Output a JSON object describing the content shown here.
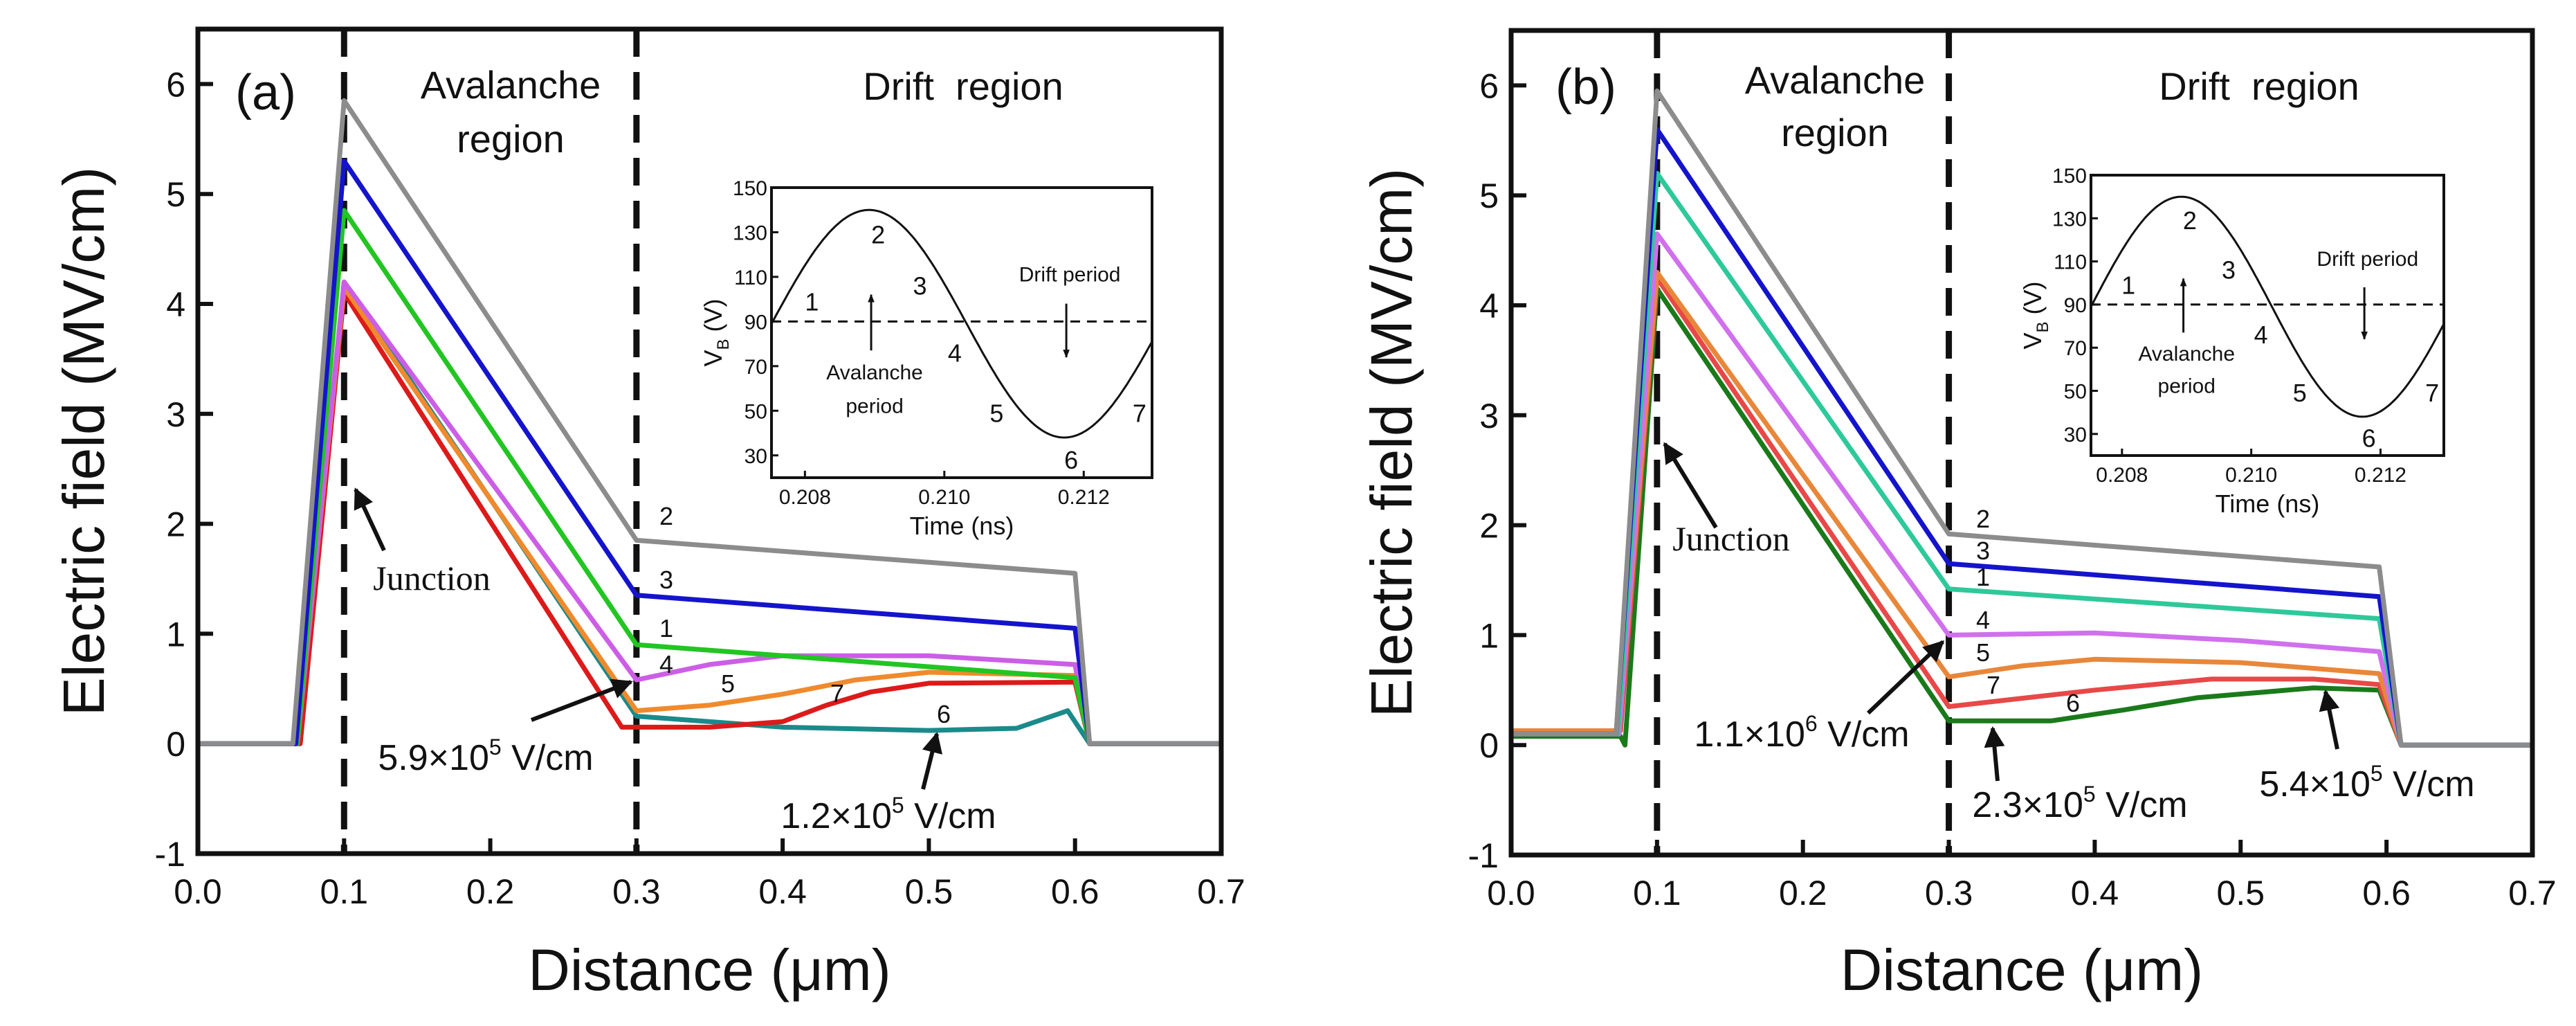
{
  "chart_data": [
    {
      "type": "line",
      "panel_label": "(a)",
      "xlabel": "Distance (μm)",
      "ylabel": "Electric field (MV/cm)",
      "xlim": [
        0.0,
        0.7
      ],
      "ylim": [
        -1,
        6.5
      ],
      "xticks": [
        "0.0",
        "0.1",
        "0.2",
        "0.3",
        "0.4",
        "0.5",
        "0.6",
        "0.7"
      ],
      "yticks": [
        "-1",
        "0",
        "1",
        "2",
        "3",
        "4",
        "5",
        "6"
      ],
      "region_labels": {
        "avalanche_1": "Avalanche",
        "avalanche_2": "region",
        "drift": "Drift  region"
      },
      "dashed_lines_x": [
        0.1,
        0.3
      ],
      "annotations": {
        "junction": "Junction",
        "a1": "5.9×10",
        "a1_exp": "5",
        "a1_unit": " V/cm",
        "a2": "1.2×10",
        "a2_exp": "5",
        "a2_unit": " V/cm"
      },
      "series": [
        {
          "name": "2",
          "color": "#8c8c8c",
          "x": [
            0,
            0.065,
            0.1,
            0.3,
            0.6,
            0.61,
            0.7
          ],
          "y": [
            0,
            0,
            5.85,
            1.85,
            1.55,
            0,
            0
          ]
        },
        {
          "name": "3",
          "color": "#1414cc",
          "x": [
            0,
            0.067,
            0.1,
            0.3,
            0.6,
            0.61,
            0.7
          ],
          "y": [
            0,
            0,
            5.3,
            1.35,
            1.05,
            0,
            0
          ]
        },
        {
          "name": "1",
          "color": "#22c522",
          "x": [
            0,
            0.068,
            0.1,
            0.3,
            0.6,
            0.61,
            0.7
          ],
          "y": [
            0,
            0,
            4.85,
            0.9,
            0.6,
            0,
            0
          ]
        },
        {
          "name": "4",
          "color": "#cc5ee6",
          "x": [
            0,
            0.068,
            0.1,
            0.3,
            0.35,
            0.4,
            0.5,
            0.6,
            0.61,
            0.7
          ],
          "y": [
            0,
            0,
            4.2,
            0.58,
            0.72,
            0.8,
            0.8,
            0.72,
            0,
            0
          ]
        },
        {
          "name": "5",
          "color": "#f08a2c",
          "x": [
            0,
            0.068,
            0.1,
            0.3,
            0.35,
            0.4,
            0.45,
            0.5,
            0.6,
            0.61,
            0.7
          ],
          "y": [
            0,
            0,
            4.15,
            0.3,
            0.35,
            0.45,
            0.58,
            0.65,
            0.62,
            0,
            0
          ]
        },
        {
          "name": "7",
          "color": "#dd1a1a",
          "x": [
            0,
            0.07,
            0.1,
            0.29,
            0.35,
            0.4,
            0.43,
            0.46,
            0.5,
            0.6,
            0.61,
            0.7
          ],
          "y": [
            0,
            0,
            4.1,
            0.15,
            0.15,
            0.2,
            0.35,
            0.47,
            0.55,
            0.56,
            0,
            0
          ]
        },
        {
          "name": "6",
          "color": "#1b8a8a",
          "x": [
            0,
            0.07,
            0.1,
            0.3,
            0.35,
            0.4,
            0.5,
            0.56,
            0.595,
            0.61,
            0.7
          ],
          "y": [
            0,
            0,
            4.2,
            0.25,
            0.2,
            0.15,
            0.12,
            0.14,
            0.3,
            0,
            0
          ]
        }
      ],
      "inset": {
        "xlabel": "Time (ns)",
        "ylabel": "V",
        "ylabel_sub": "B",
        "ylabel_unit": " (V)",
        "xlim": [
          0.20752,
          0.21298
        ],
        "ylim": [
          20,
          150
        ],
        "xticks": [
          "0.208",
          "0.210",
          "0.212"
        ],
        "yticks": [
          "30",
          "50",
          "70",
          "90",
          "110",
          "130",
          "150"
        ],
        "offset": 89,
        "amplitude": 51,
        "period_ns": 0.0056,
        "start_ns": 0.20752,
        "dc_level": 90,
        "point_labels": [
          "1",
          "2",
          "3",
          "4",
          "5",
          "6",
          "7"
        ],
        "avalanche_1": "Avalanche",
        "avalanche_2": "period",
        "drift": "Drift period"
      }
    },
    {
      "type": "line",
      "panel_label": "(b)",
      "xlabel": "Distance (μm)",
      "ylabel": "Electric field (MV/cm)",
      "xlim": [
        0.0,
        0.7
      ],
      "ylim": [
        -1,
        6.5
      ],
      "xticks": [
        "0.0",
        "0.1",
        "0.2",
        "0.3",
        "0.4",
        "0.5",
        "0.6",
        "0.7"
      ],
      "yticks": [
        "-1",
        "0",
        "1",
        "2",
        "3",
        "4",
        "5",
        "6"
      ],
      "region_labels": {
        "avalanche_1": "Avalanche",
        "avalanche_2": "region",
        "drift": "Drift  region"
      },
      "dashed_lines_x": [
        0.1,
        0.3
      ],
      "annotations": {
        "junction": "Junction",
        "a1": "1.1×10",
        "a1_exp": "6",
        "a1_unit": " V/cm",
        "a2": "2.3×10",
        "a2_exp": "5",
        "a2_unit": " V/cm",
        "a3": "5.4×10",
        "a3_exp": "5",
        "a3_unit": " V/cm"
      },
      "series": [
        {
          "name": "2",
          "color": "#8c8c8c",
          "x": [
            0,
            0.072,
            0.1,
            0.3,
            0.595,
            0.61,
            0.7
          ],
          "y": [
            0.1,
            0.1,
            5.95,
            1.92,
            1.62,
            0,
            0
          ]
        },
        {
          "name": "3",
          "color": "#1414cc",
          "x": [
            0,
            0.072,
            0.1,
            0.3,
            0.595,
            0.61,
            0.7
          ],
          "y": [
            0.1,
            0.1,
            5.6,
            1.65,
            1.35,
            0,
            0
          ]
        },
        {
          "name": "1",
          "color": "#2ec99a",
          "x": [
            0,
            0.073,
            0.1,
            0.3,
            0.595,
            0.61,
            0.7
          ],
          "y": [
            0.1,
            0.1,
            5.2,
            1.42,
            1.15,
            0,
            0
          ]
        },
        {
          "name": "4",
          "color": "#d070ec",
          "x": [
            0,
            0.074,
            0.1,
            0.3,
            0.4,
            0.5,
            0.595,
            0.61,
            0.7
          ],
          "y": [
            0.1,
            0.1,
            4.65,
            1.0,
            1.02,
            0.95,
            0.85,
            0,
            0
          ]
        },
        {
          "name": "5",
          "color": "#e8873a",
          "x": [
            0,
            0.074,
            0.1,
            0.3,
            0.35,
            0.4,
            0.5,
            0.595,
            0.61,
            0.7
          ],
          "y": [
            0.13,
            0.13,
            4.3,
            0.62,
            0.72,
            0.78,
            0.75,
            0.65,
            0,
            0
          ]
        },
        {
          "name": "7",
          "color": "#e84848",
          "x": [
            0,
            0.075,
            0.1,
            0.3,
            0.4,
            0.48,
            0.55,
            0.595,
            0.61,
            0.7
          ],
          "y": [
            0.13,
            0.13,
            4.25,
            0.35,
            0.5,
            0.6,
            0.6,
            0.55,
            0,
            0
          ]
        },
        {
          "name": "6",
          "color": "#1a7a1a",
          "x": [
            0,
            0.075,
            0.078,
            0.1,
            0.3,
            0.37,
            0.42,
            0.47,
            0.55,
            0.595,
            0.61,
            0.7
          ],
          "y": [
            0.08,
            0.08,
            0,
            4.15,
            0.22,
            0.22,
            0.32,
            0.43,
            0.52,
            0.5,
            0,
            0
          ]
        }
      ],
      "inset": {
        "xlabel": "Time (ns)",
        "ylabel": "V",
        "ylabel_sub": "B",
        "ylabel_unit": " (V)",
        "xlim": [
          0.20752,
          0.21298
        ],
        "ylim": [
          20,
          150
        ],
        "xticks": [
          "0.208",
          "0.210",
          "0.212"
        ],
        "yticks": [
          "30",
          "50",
          "70",
          "90",
          "110",
          "130",
          "150"
        ],
        "offset": 89,
        "amplitude": 51,
        "period_ns": 0.0056,
        "start_ns": 0.20752,
        "dc_level": 90,
        "point_labels": [
          "1",
          "2",
          "3",
          "4",
          "5",
          "6",
          "7"
        ],
        "avalanche_1": "Avalanche",
        "avalanche_2": "period",
        "drift": "Drift period"
      }
    }
  ]
}
